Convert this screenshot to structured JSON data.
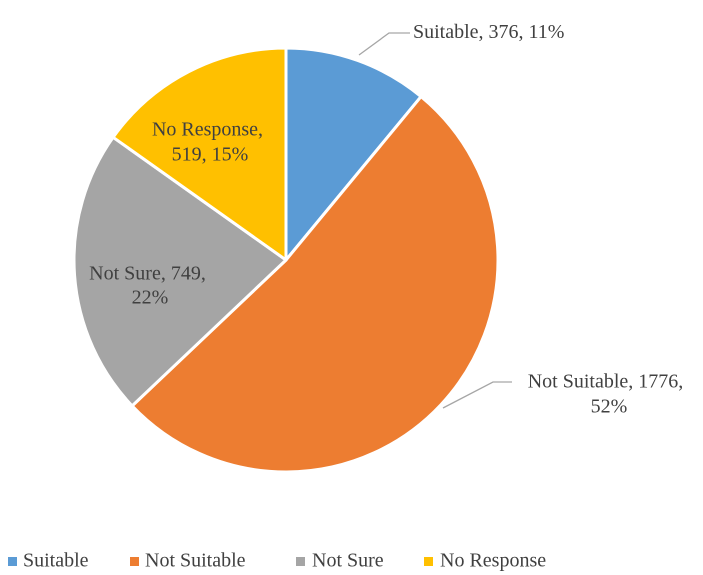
{
  "chart_data": {
    "type": "pie",
    "title": "",
    "series": [
      {
        "categories": [
          "Suitable",
          "Not Suitable",
          "Not Sure",
          "No Response"
        ],
        "values": [
          376,
          1776,
          749,
          519
        ],
        "percents": [
          11,
          52,
          22,
          15
        ],
        "colors": [
          "#5B9BD5",
          "#ED7D31",
          "#A5A5A5",
          "#FFC000"
        ]
      }
    ],
    "data_labels": [
      {
        "lines": [
          "Suitable, 376, 11%"
        ]
      },
      {
        "lines": [
          "Not Suitable, 1776,",
          "52%"
        ]
      },
      {
        "lines": [
          "Not Sure, 749,",
          "22%"
        ]
      },
      {
        "lines": [
          "No Response,",
          "519, 15%"
        ]
      }
    ],
    "legend": {
      "position": "bottom",
      "entries": [
        "Suitable",
        "Not Suitable",
        "Not Sure",
        "No Response"
      ]
    }
  }
}
